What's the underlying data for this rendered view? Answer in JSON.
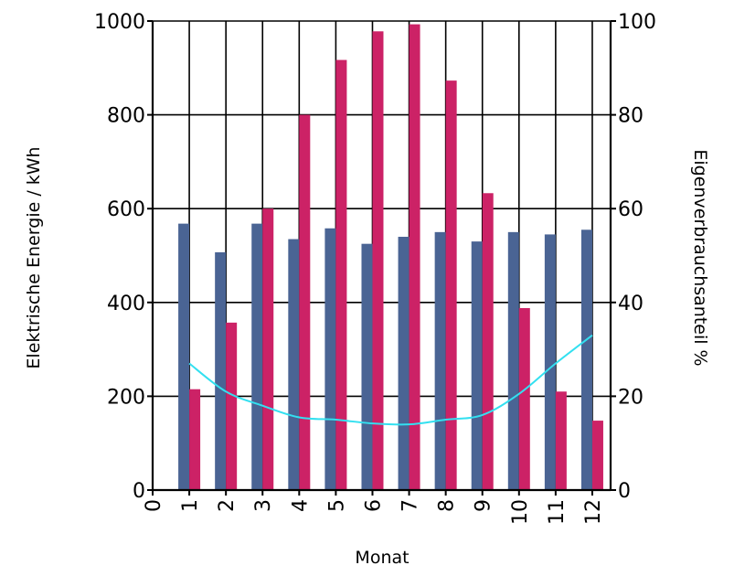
{
  "chart_data": {
    "type": "bar",
    "xlabel": "Monat",
    "ylabel": "Elektrische Energie / kWh",
    "y2label": "Eigenverbrauchsanteil %",
    "x_ticks": [
      "0",
      "1",
      "2",
      "3",
      "4",
      "5",
      "6",
      "7",
      "8",
      "9",
      "10",
      "11",
      "12"
    ],
    "categories": [
      "1",
      "2",
      "3",
      "4",
      "5",
      "6",
      "7",
      "8",
      "9",
      "10",
      "11",
      "12"
    ],
    "ylim": [
      0,
      1000
    ],
    "y_ticks": [
      "0",
      "200",
      "400",
      "600",
      "800",
      "1000"
    ],
    "y2lim": [
      0,
      100
    ],
    "y2_ticks": [
      "0",
      "20",
      "40",
      "60",
      "80",
      "100"
    ],
    "grid": true,
    "series": [
      {
        "axis": "left",
        "type": "bar",
        "color": "#4a6494",
        "values": [
          568,
          507,
          568,
          535,
          558,
          525,
          540,
          550,
          530,
          550,
          545,
          555
        ]
      },
      {
        "axis": "left",
        "type": "bar",
        "color": "#cc2266",
        "values": [
          215,
          357,
          600,
          800,
          917,
          978,
          993,
          873,
          633,
          388,
          210,
          148
        ]
      },
      {
        "axis": "right",
        "type": "line",
        "color": "#33e0f0",
        "values": [
          27,
          21,
          18,
          15.5,
          15,
          14.2,
          14,
          15,
          16,
          20.5,
          27,
          33
        ]
      }
    ]
  }
}
